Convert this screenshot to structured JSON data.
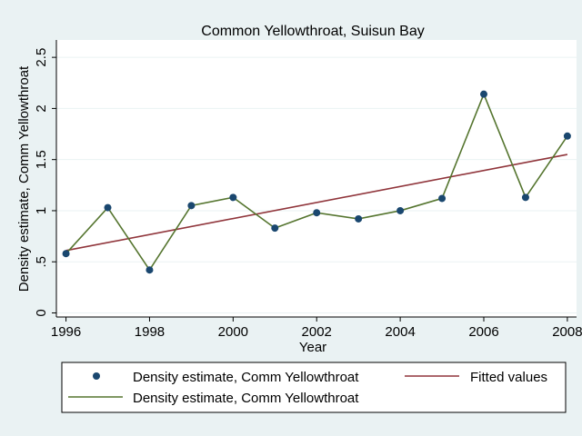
{
  "chart_data": {
    "type": "line",
    "title": "Common Yellowthroat, Suisun Bay",
    "xlabel": "Year",
    "ylabel": "Density estimate, Comm Yellowthroat",
    "xlim": [
      1996,
      2008
    ],
    "ylim": [
      0,
      2.5
    ],
    "x_ticks": [
      1996,
      1998,
      2000,
      2002,
      2004,
      2006,
      2008
    ],
    "x_tick_labels": [
      "1996",
      "1998",
      "2000",
      "2002",
      "2004",
      "2006",
      "2008"
    ],
    "y_ticks": [
      0,
      0.5,
      1,
      1.5,
      2,
      2.5
    ],
    "y_tick_labels": [
      "0",
      ".5",
      "1",
      "1.5",
      "2",
      "2.5"
    ],
    "grid": true,
    "legend_position": "bottom",
    "series": [
      {
        "name": "Density estimate, Comm Yellowthroat",
        "kind": "scatter",
        "color": "#1a476f",
        "x": [
          1996,
          1997,
          1998,
          1999,
          2000,
          2001,
          2002,
          2003,
          2004,
          2005,
          2006,
          2007,
          2008
        ],
        "y": [
          0.58,
          1.03,
          0.42,
          1.05,
          1.13,
          0.83,
          0.98,
          0.92,
          1.0,
          1.12,
          2.14,
          1.13,
          1.73
        ]
      },
      {
        "name": "Fitted values",
        "kind": "line",
        "color": "#90353b",
        "x": [
          1996,
          2008
        ],
        "y": [
          0.61,
          1.55
        ]
      },
      {
        "name": "Density estimate, Comm Yellowthroat",
        "kind": "line",
        "color": "#55752f",
        "x": [
          1996,
          1997,
          1998,
          1999,
          2000,
          2001,
          2002,
          2003,
          2004,
          2005,
          2006,
          2007,
          2008
        ],
        "y": [
          0.58,
          1.03,
          0.42,
          1.05,
          1.13,
          0.83,
          0.98,
          0.92,
          1.0,
          1.12,
          2.14,
          1.13,
          1.73
        ]
      }
    ]
  }
}
